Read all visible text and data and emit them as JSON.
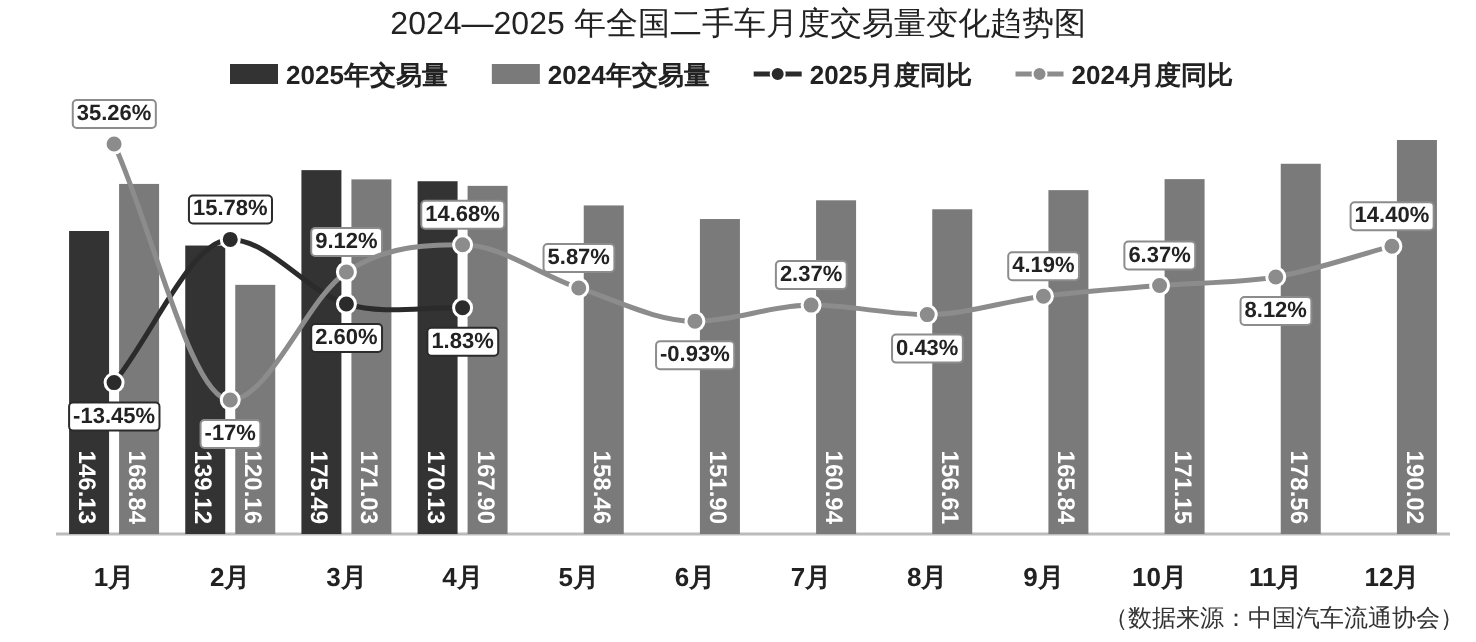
{
  "chart_data": {
    "type": "bar",
    "title": "2024—2025 年全国二手车月度交易量变化趋势图",
    "categories": [
      "1月",
      "2月",
      "3月",
      "4月",
      "5月",
      "6月",
      "7月",
      "8月",
      "9月",
      "10月",
      "11月",
      "12月"
    ],
    "series": [
      {
        "name": "2025年交易量",
        "color": "#333333",
        "values": [
          146.13,
          139.12,
          175.49,
          170.13,
          null,
          null,
          null,
          null,
          null,
          null,
          null,
          null
        ],
        "value_labels": [
          "146.13",
          "139.12",
          "175.49",
          "170.13",
          null,
          null,
          null,
          null,
          null,
          null,
          null,
          null
        ]
      },
      {
        "name": "2024年交易量",
        "color": "#7a7a7a",
        "values": [
          168.84,
          120.16,
          171.03,
          167.9,
          158.46,
          151.9,
          160.94,
          156.61,
          165.84,
          171.15,
          178.56,
          190.02
        ],
        "value_labels": [
          "168.84",
          "120.16",
          "171.03",
          "167.90",
          "158.46",
          "151.90",
          "160.94",
          "156.61",
          "165.84",
          "171.15",
          "178.56",
          "190.02"
        ]
      },
      {
        "name": "2025月度同比",
        "type": "line",
        "axis": "y2",
        "color": "#2b2b2b",
        "values": [
          -13.45,
          15.78,
          2.6,
          1.83,
          null,
          null,
          null,
          null,
          null,
          null,
          null,
          null
        ],
        "value_labels": [
          "-13.45%",
          "15.78%",
          "2.60%",
          "1.83%",
          null,
          null,
          null,
          null,
          null,
          null,
          null,
          null
        ]
      },
      {
        "name": "2024月度同比",
        "type": "line",
        "axis": "y2",
        "color": "#8c8c8c",
        "values": [
          35.26,
          -17,
          9.12,
          14.68,
          5.87,
          -0.93,
          2.37,
          0.43,
          4.19,
          6.37,
          8.12,
          14.4
        ],
        "value_labels": [
          "35.26%",
          "-17%",
          "9.12%",
          "14.68%",
          "5.87%",
          "-0.93%",
          "2.37%",
          "0.43%",
          "4.19%",
          "6.37%",
          "8.12%",
          "14.40%"
        ]
      }
    ],
    "marker": "circle",
    "legend": "top",
    "annotations": [
      "（数据来源：中国汽车流通协会）"
    ]
  }
}
